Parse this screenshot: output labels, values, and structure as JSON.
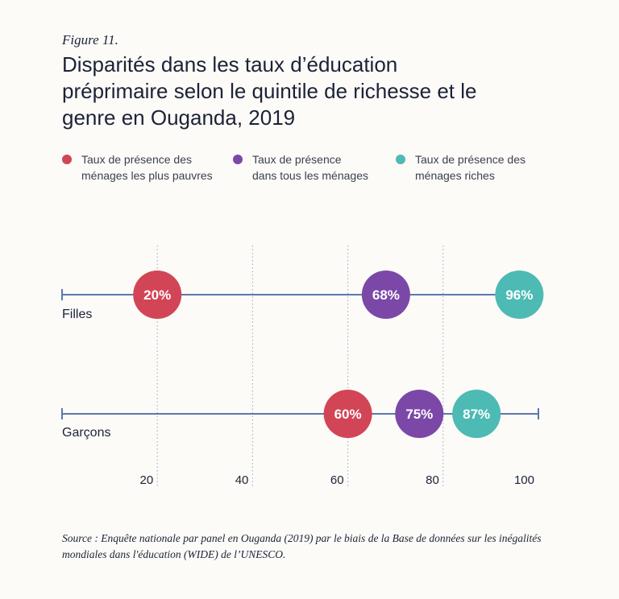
{
  "figure_label": "Figure 11.",
  "title": "Disparités dans les taux d’éducation préprimaire selon le quintile de richesse et le genre en Ouganda, 2019",
  "legend": [
    {
      "label": "Taux de présence des\nménages les plus pauvres",
      "color": "#d24556"
    },
    {
      "label": "Taux de présence\ndans tous les ménages",
      "color": "#7b48a8"
    },
    {
      "label": "Taux de présence des\nménages riches",
      "color": "#4dbab4"
    }
  ],
  "source": "Source : Enquête nationale par panel en Ouganda (2019) par le biais de la Base de données sur les inégalités mondiales dans l'éducation (WIDE) de l’UNESCO.",
  "chart_data": {
    "type": "scatter",
    "subtype": "dot-plot",
    "title": "Disparités dans les taux d’éducation préprimaire selon le quintile de richesse et le genre en Ouganda, 2019",
    "categories": [
      "Filles",
      "Garçons"
    ],
    "series": [
      {
        "name": "Taux de présence des ménages les plus pauvres",
        "color": "#d24556",
        "values": [
          20,
          60
        ],
        "labels": [
          "20%",
          "60%"
        ]
      },
      {
        "name": "Taux de présence dans tous les ménages",
        "color": "#7b48a8",
        "values": [
          68,
          75
        ],
        "labels": [
          "68%",
          "75%"
        ]
      },
      {
        "name": "Taux de présence des ménages riches",
        "color": "#4dbab4",
        "values": [
          96,
          87
        ],
        "labels": [
          "96%",
          "87%"
        ]
      }
    ],
    "xlim": [
      0,
      100
    ],
    "xticks": [
      20,
      40,
      60,
      80,
      100
    ],
    "xtick_labels": [
      "20",
      "40",
      "60",
      "80",
      "100"
    ],
    "gridlines": [
      20,
      40,
      60,
      80
    ],
    "line_ranges": [
      [
        0,
        96
      ],
      [
        0,
        100
      ]
    ],
    "grid": true,
    "legend_position": "top",
    "xlabel": "",
    "ylabel": "",
    "colors": {
      "line": "#5a78ad",
      "grid": "#9aa6c4"
    }
  }
}
